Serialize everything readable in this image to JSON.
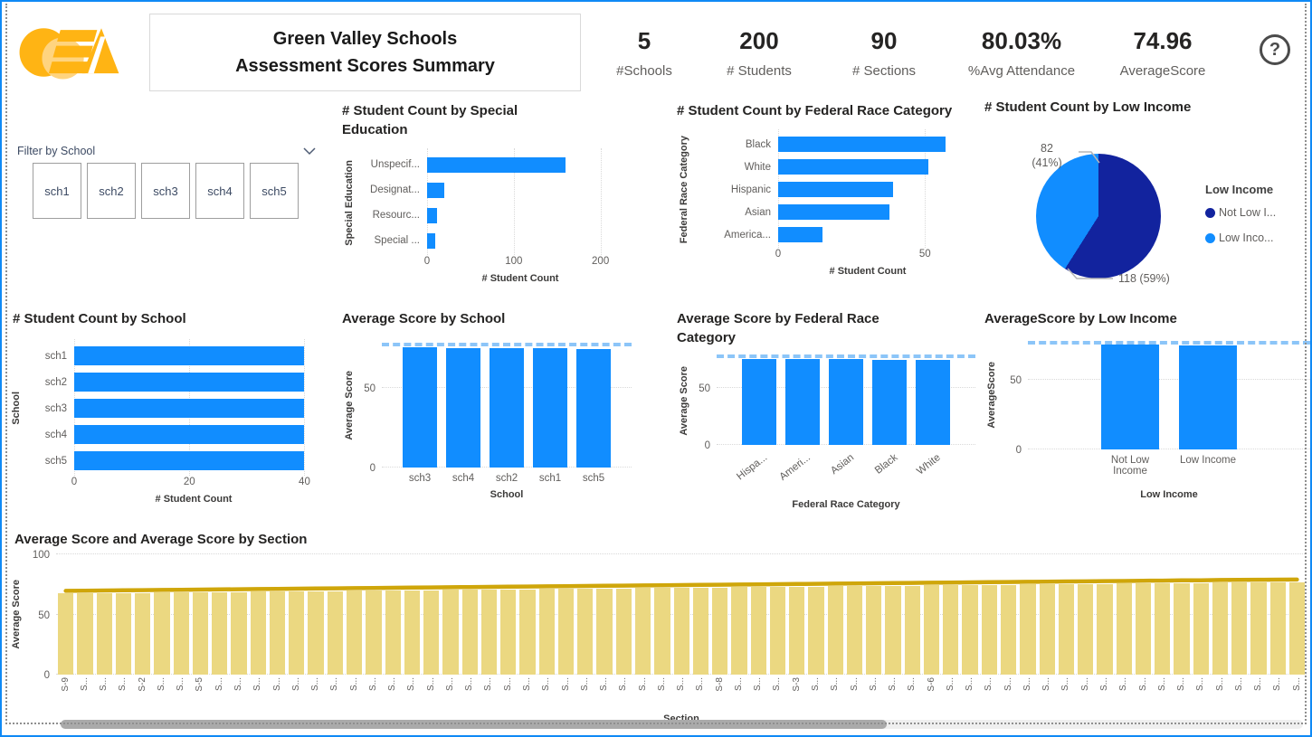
{
  "icons": {
    "help_glyph": "?",
    "logo": "oea-logo",
    "chevron": "chevron-down"
  },
  "header": {
    "title_line1": "Green Valley Schools",
    "title_line2": "Assessment Scores Summary",
    "kpis": [
      {
        "value": "5",
        "label": "#Schools"
      },
      {
        "value": "200",
        "label": "# Students"
      },
      {
        "value": "90",
        "label": "# Sections"
      },
      {
        "value": "80.03%",
        "label": "%Avg Attendance"
      },
      {
        "value": "74.96",
        "label": "AverageScore"
      }
    ]
  },
  "slicer": {
    "title": "Filter by School",
    "items": [
      "sch1",
      "sch2",
      "sch3",
      "sch4",
      "sch5"
    ]
  },
  "colors": {
    "accent_blue": "#118DFF",
    "navy": "#12239E",
    "ref_line": "#8CC5F8",
    "combo_bar": "#EBD881",
    "combo_line": "#CFA60A",
    "axis_text": "#605E5C",
    "title_text": "#252423",
    "window_border": "#0F89F5"
  },
  "chart_data": [
    {
      "id": "sped",
      "type": "bar",
      "orientation": "horizontal",
      "title": "# Student Count by Special Education",
      "ylabel": "Special Education",
      "xlabel": "# Student Count",
      "categories": [
        "Unspecif...",
        "Designat...",
        "Resourc...",
        "Special ..."
      ],
      "values": [
        160,
        20,
        11,
        9
      ],
      "xticks": [
        0,
        100,
        200
      ],
      "xlim": [
        0,
        215
      ],
      "grid": true
    },
    {
      "id": "race",
      "type": "bar",
      "orientation": "horizontal",
      "title": "# Student Count by Federal Race Category",
      "ylabel": "Federal Race Category",
      "xlabel": "# Student Count",
      "categories": [
        "Black",
        "White",
        "Hispanic",
        "Asian",
        "America..."
      ],
      "values": [
        57,
        51,
        39,
        38,
        15
      ],
      "xticks": [
        0,
        50
      ],
      "xlim": [
        0,
        61
      ],
      "grid": true
    },
    {
      "id": "pie",
      "type": "pie",
      "title": "# Student Count by Low Income",
      "slices": [
        {
          "label": "Not Low Income",
          "value": 118,
          "pct": 59,
          "color": "#12239E"
        },
        {
          "label": "Low Income",
          "value": 82,
          "pct": 41,
          "color": "#118DFF"
        }
      ],
      "callout_light_line1": "82",
      "callout_light_line2": "(41%)",
      "callout_dark": "118 (59%)",
      "legend": {
        "title": "Low Income",
        "position": "right",
        "items": [
          {
            "label": "Not Low I...",
            "color": "#12239E"
          },
          {
            "label": "Low Inco...",
            "color": "#118DFF"
          }
        ]
      }
    },
    {
      "id": "schoolcount",
      "type": "bar",
      "orientation": "horizontal",
      "title": "# Student Count by School",
      "ylabel": "School",
      "xlabel": "# Student Count",
      "categories": [
        "sch1",
        "sch2",
        "sch3",
        "sch4",
        "sch5"
      ],
      "values": [
        40,
        40,
        40,
        40,
        40
      ],
      "xticks": [
        0,
        20,
        40
      ],
      "xlim": [
        0,
        41.5
      ],
      "grid": true
    },
    {
      "id": "avgschool",
      "type": "bar",
      "orientation": "vertical",
      "title": "Average Score by School",
      "ylabel": "Average Score",
      "xlabel": "School",
      "categories": [
        "sch3",
        "sch4",
        "sch2",
        "sch1",
        "sch5"
      ],
      "values": [
        75.0,
        74.8,
        74.6,
        74.4,
        74.1
      ],
      "ref_line": 75.9,
      "yticks": [
        0,
        50
      ],
      "ylim": [
        0,
        78
      ],
      "grid": true
    },
    {
      "id": "avgrace",
      "type": "bar",
      "orientation": "vertical",
      "title": "Average Score by Federal Race Category",
      "ylabel": "Average Score",
      "xlabel": "Federal Race Category",
      "categories": [
        "Hispa...",
        "Ameri...",
        "Asian",
        "Black",
        "White"
      ],
      "values": [
        76.0,
        75.8,
        75.4,
        75.1,
        74.9
      ],
      "ref_line": 76.1,
      "yticks": [
        0,
        50
      ],
      "ylim": [
        0,
        78
      ],
      "rotate_labels": true,
      "grid": true
    },
    {
      "id": "avglow",
      "type": "bar",
      "orientation": "vertical",
      "title": "AverageScore by Low Income",
      "ylabel": "AverageScore",
      "xlabel": "Low Income",
      "categories": [
        "Not Low Income",
        "Low Income"
      ],
      "values": [
        75.3,
        74.6
      ],
      "ref_line": 75.5,
      "yticks": [
        0,
        50
      ],
      "ylim": [
        0,
        78
      ],
      "grid": true
    },
    {
      "id": "section",
      "type": "combo",
      "title": "Average Score and Average Score by Section",
      "ylabel": "Average Score",
      "xlabel": "Section",
      "series": [
        {
          "name": "Average Score",
          "type": "bar"
        },
        {
          "name": "Average Score",
          "type": "line"
        }
      ],
      "categories": [
        "S-9",
        "S...",
        "S...",
        "S...",
        "S-2",
        "S...",
        "S...",
        "S-5",
        "S...",
        "S...",
        "S...",
        "S...",
        "S...",
        "S...",
        "S...",
        "S...",
        "S...",
        "S...",
        "S...",
        "S...",
        "S...",
        "S...",
        "S...",
        "S...",
        "S...",
        "S...",
        "S...",
        "S...",
        "S...",
        "S...",
        "S...",
        "S...",
        "S...",
        "S...",
        "S-8",
        "S...",
        "S...",
        "S...",
        "S-3",
        "S...",
        "S...",
        "S...",
        "S...",
        "S...",
        "S...",
        "S-6",
        "S...",
        "S...",
        "S...",
        "S...",
        "S...",
        "S...",
        "S...",
        "S...",
        "S...",
        "S...",
        "S...",
        "S...",
        "S...",
        "S...",
        "S...",
        "S...",
        "S...",
        "S...",
        "S..."
      ],
      "values": [
        67.4,
        67.5,
        67.7,
        67.8,
        68.0,
        68.1,
        68.3,
        68.4,
        68.6,
        68.7,
        68.9,
        69.0,
        69.2,
        69.3,
        69.5,
        69.6,
        69.8,
        69.9,
        70.1,
        70.2,
        70.4,
        70.5,
        70.7,
        70.8,
        71.0,
        71.1,
        71.3,
        71.4,
        71.6,
        71.7,
        71.9,
        72.0,
        72.2,
        72.3,
        72.5,
        72.6,
        72.8,
        72.9,
        73.1,
        73.2,
        73.4,
        73.5,
        73.7,
        73.8,
        74.0,
        74.1,
        74.3,
        74.4,
        74.6,
        74.7,
        74.9,
        75.0,
        75.2,
        75.3,
        75.5,
        75.6,
        75.8,
        75.9,
        76.1,
        76.2,
        76.4,
        76.5,
        76.6,
        76.7,
        76.8
      ],
      "yticks": [
        0,
        50,
        100
      ],
      "ylim": [
        0,
        100
      ],
      "grid": true
    }
  ]
}
